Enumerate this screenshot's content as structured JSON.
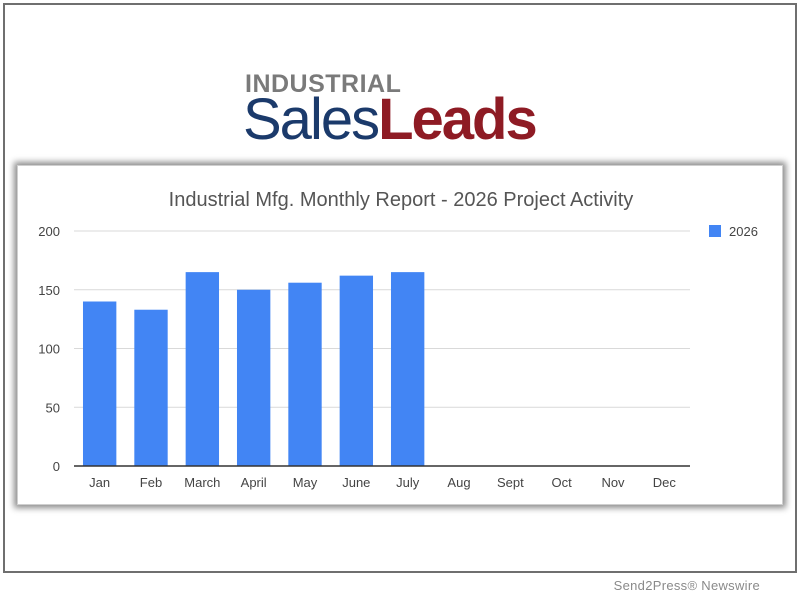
{
  "logo": {
    "top_text": "INDUSTRIAL",
    "sales_text": "Sales",
    "leads_text": "Leads"
  },
  "chart_data": {
    "type": "bar",
    "title": "Industrial Mfg. Monthly Report - 2026 Project Activity",
    "categories": [
      "Jan",
      "Feb",
      "March",
      "April",
      "May",
      "June",
      "July",
      "Aug",
      "Sept",
      "Oct",
      "Nov",
      "Dec"
    ],
    "series": [
      {
        "name": "2026",
        "values": [
          140,
          133,
          165,
          150,
          156,
          162,
          165,
          null,
          null,
          null,
          null,
          null
        ],
        "color": "#4285f4"
      }
    ],
    "ylim": [
      0,
      200
    ],
    "yticks": [
      0,
      50,
      100,
      150,
      200
    ],
    "grid": true,
    "legend": "right"
  },
  "footer": {
    "text": "Send2Press® Newswire"
  }
}
